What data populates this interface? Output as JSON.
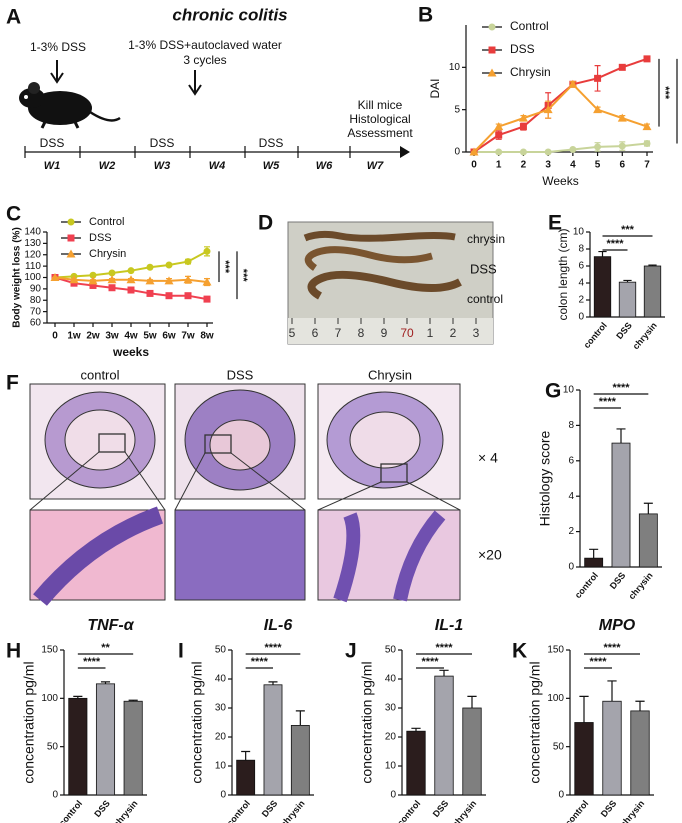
{
  "timeline": {
    "panel": "A",
    "title": "chronic colitis",
    "steps": [
      "1-3% DSS",
      "1-3% DSS+autoclaved water",
      "3 cycles"
    ],
    "weeks": [
      "W1",
      "W2",
      "W3",
      "W4",
      "W5",
      "W6",
      "W7"
    ],
    "treatments": [
      "DSS",
      "DSS",
      "DSS"
    ],
    "endpoint": [
      "Kill mice",
      "Histological",
      "Assessment"
    ]
  },
  "photo": {
    "panel": "D",
    "labels": [
      "chrysin",
      "DSS",
      "control"
    ],
    "ruler": [
      "5",
      "6",
      "7",
      "8",
      "9",
      "70",
      "1",
      "2",
      "3"
    ]
  },
  "histology": {
    "panel": "F",
    "columns": [
      "control",
      "DSS",
      "Chrysin"
    ],
    "magnifications": [
      "× 4",
      "×20"
    ]
  },
  "chart_data": [
    {
      "panel": "B",
      "type": "line",
      "x": [
        0,
        1,
        2,
        3,
        4,
        5,
        6,
        7
      ],
      "xlim": [
        0,
        7
      ],
      "xticks": [
        0,
        1,
        2,
        3,
        4,
        5,
        6,
        7
      ],
      "ylim": [
        0,
        15
      ],
      "yticks": [
        0,
        5,
        10
      ],
      "xlabel": "Weeks",
      "ylabel": "DAI",
      "significance": [
        "***",
        "***"
      ],
      "series": [
        {
          "name": "Control",
          "color": "#c8d49a",
          "marker": "circle",
          "values": [
            0,
            0,
            0,
            0,
            0.3,
            0.6,
            0.7,
            1.0
          ],
          "errors": [
            0,
            0,
            0,
            0,
            0,
            0.5,
            0.5,
            0.3
          ]
        },
        {
          "name": "DSS",
          "color": "#e83c3c",
          "marker": "square",
          "values": [
            0,
            2,
            3,
            5.5,
            8,
            8.7,
            10,
            11
          ],
          "errors": [
            0,
            0.5,
            0.4,
            1.5,
            0,
            1.5,
            0.3,
            0.3
          ]
        },
        {
          "name": "Chrysin",
          "color": "#f5a030",
          "marker": "triangle",
          "values": [
            0,
            3,
            4,
            5,
            8,
            5,
            4,
            3
          ],
          "errors": [
            0,
            0.3,
            0.3,
            1,
            0.3,
            0.3,
            0.3,
            0.3
          ]
        }
      ]
    },
    {
      "panel": "C",
      "type": "line",
      "categories": [
        "0",
        "1w",
        "2w",
        "3w",
        "4w",
        "5w",
        "6w",
        "7w",
        "8w"
      ],
      "ylim": [
        60,
        140
      ],
      "yticks": [
        60,
        70,
        80,
        90,
        100,
        110,
        120,
        130,
        140
      ],
      "xlabel": "weeks",
      "ylabel": "Body weight loss (%)",
      "significance": [
        "***",
        "***"
      ],
      "series": [
        {
          "name": "Control",
          "color": "#c8c820",
          "marker": "circle",
          "values": [
            100,
            101,
            102,
            104,
            106,
            109,
            111,
            114,
            123
          ],
          "errors": [
            0,
            0,
            1,
            0,
            0,
            0,
            1,
            2,
            4
          ]
        },
        {
          "name": "DSS",
          "color": "#f04050",
          "marker": "square",
          "values": [
            100,
            95,
            93,
            91,
            89,
            86,
            84,
            84,
            81
          ],
          "errors": [
            0,
            0,
            1,
            1,
            0,
            0,
            1,
            1,
            1
          ]
        },
        {
          "name": "Chrysin",
          "color": "#f5a030",
          "marker": "triangle",
          "values": [
            100,
            98,
            97,
            98,
            98,
            97,
            97,
            98,
            96
          ],
          "errors": [
            0,
            0,
            1,
            1,
            1,
            1,
            2,
            3,
            3
          ]
        }
      ]
    },
    {
      "panel": "E",
      "type": "bar",
      "categories": [
        "control",
        "DSS",
        "chrysin"
      ],
      "values": [
        7.1,
        4.1,
        6.0
      ],
      "errors": [
        0.6,
        0.2,
        0.1
      ],
      "colors": [
        "#2b1d1d",
        "#a4a4ac",
        "#7f7f7f"
      ],
      "ylim": [
        0,
        10
      ],
      "yticks": [
        0,
        2,
        4,
        6,
        8,
        10
      ],
      "ylabel": "colon length (cm)",
      "significance": [
        "****",
        "***"
      ]
    },
    {
      "panel": "G",
      "type": "bar",
      "categories": [
        "control",
        "DSS",
        "chrysin"
      ],
      "values": [
        0.5,
        7,
        3
      ],
      "errors": [
        0.5,
        0.8,
        0.6
      ],
      "colors": [
        "#2b1d1d",
        "#a4a4ac",
        "#7f7f7f"
      ],
      "ylim": [
        0,
        10
      ],
      "yticks": [
        0,
        2,
        4,
        6,
        8,
        10
      ],
      "ylabel": "Histology score",
      "significance": [
        "****",
        "****"
      ]
    },
    {
      "panel": "H",
      "type": "bar",
      "title": "TNF-α",
      "categories": [
        "control",
        "DSS",
        "chrysin"
      ],
      "values": [
        100,
        115,
        97
      ],
      "errors": [
        2,
        2,
        1
      ],
      "colors": [
        "#2b1d1d",
        "#a4a4ac",
        "#7f7f7f"
      ],
      "ylim": [
        0,
        150
      ],
      "yticks": [
        0,
        50,
        100,
        150
      ],
      "ylabel": "concentration pg/ml",
      "significance": [
        "****",
        "**"
      ]
    },
    {
      "panel": "I",
      "type": "bar",
      "title": "IL-6",
      "categories": [
        "control",
        "DSS",
        "chrysin"
      ],
      "values": [
        12,
        38,
        24
      ],
      "errors": [
        3,
        1,
        5
      ],
      "colors": [
        "#2b1d1d",
        "#a4a4ac",
        "#7f7f7f"
      ],
      "ylim": [
        0,
        50
      ],
      "yticks": [
        0,
        10,
        20,
        30,
        40,
        50
      ],
      "ylabel": "concentration pg/ml",
      "significance": [
        "****",
        "****"
      ]
    },
    {
      "panel": "J",
      "type": "bar",
      "title": "IL-1",
      "categories": [
        "control",
        "DSS",
        "chrysin"
      ],
      "values": [
        22,
        41,
        30
      ],
      "errors": [
        1,
        2,
        4
      ],
      "colors": [
        "#2b1d1d",
        "#a4a4ac",
        "#7f7f7f"
      ],
      "ylim": [
        0,
        50
      ],
      "yticks": [
        0,
        10,
        20,
        30,
        40,
        50
      ],
      "ylabel": "concentration pg/ml",
      "significance": [
        "****",
        "****"
      ]
    },
    {
      "panel": "K",
      "type": "bar",
      "title": "MPO",
      "categories": [
        "control",
        "DSS",
        "chrysin"
      ],
      "values": [
        75,
        97,
        87
      ],
      "errors": [
        27,
        21,
        10
      ],
      "colors": [
        "#2b1d1d",
        "#a4a4ac",
        "#7f7f7f"
      ],
      "ylim": [
        0,
        150
      ],
      "yticks": [
        0,
        50,
        100,
        150
      ],
      "ylabel": "concentration pg/ml",
      "significance": [
        "****",
        "****"
      ]
    }
  ]
}
